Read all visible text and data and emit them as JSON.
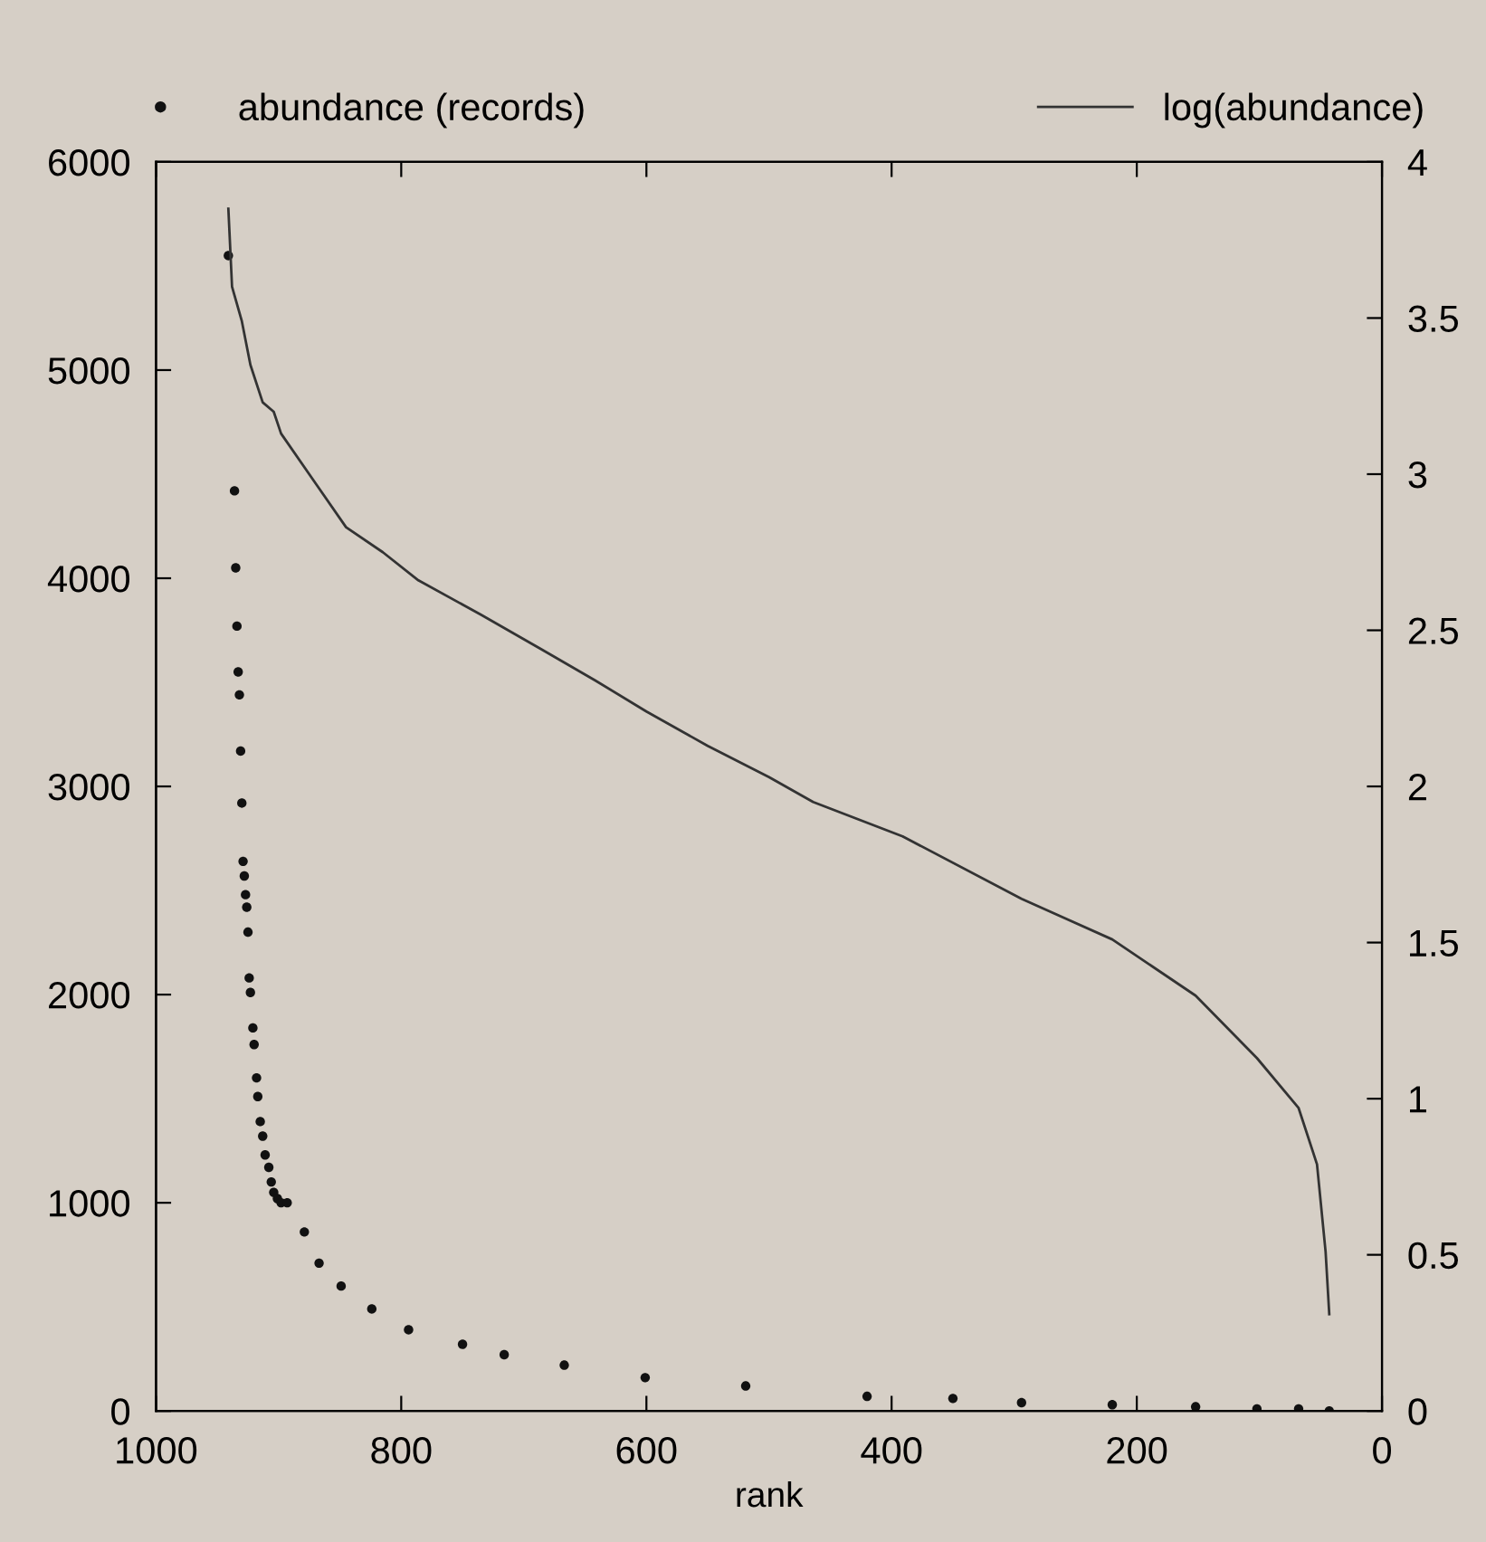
{
  "chart_data": {
    "type": "scatter",
    "xlabel": "rank",
    "legend": "top",
    "xlim": [
      1000,
      0
    ],
    "xticks": [
      1000,
      800,
      600,
      400,
      200,
      0
    ],
    "ylim": [
      0,
      6000
    ],
    "yticks": [
      0,
      1000,
      2000,
      3000,
      4000,
      5000,
      6000
    ],
    "y2lim": [
      0,
      4
    ],
    "y2ticks": [
      0,
      0.5,
      1,
      1.5,
      2,
      2.5,
      3,
      3.5,
      4
    ],
    "grid": false,
    "series": [
      {
        "name": "abundance (records)",
        "marker": "circle",
        "color": "#111111",
        "x": [
          941,
          936,
          935,
          934,
          933,
          932,
          931,
          930,
          929,
          928,
          927,
          926,
          925,
          924,
          923,
          921,
          920,
          918,
          917,
          915,
          913,
          911,
          908,
          906,
          904,
          901,
          898,
          893,
          879,
          867,
          849,
          824,
          794,
          750,
          716,
          667,
          601,
          519,
          420,
          350,
          294,
          220,
          152,
          102,
          68,
          43
        ],
        "values": [
          5550,
          4420,
          4050,
          3770,
          3550,
          3440,
          3170,
          2920,
          2640,
          2570,
          2480,
          2420,
          2300,
          2080,
          2010,
          1840,
          1760,
          1600,
          1510,
          1390,
          1320,
          1230,
          1170,
          1100,
          1050,
          1020,
          1000,
          1000,
          860,
          710,
          600,
          490,
          390,
          320,
          270,
          220,
          160,
          120,
          70,
          60,
          40,
          30,
          20,
          10,
          10,
          0
        ]
      },
      {
        "name": "log(abundance)",
        "type": "line",
        "axis": "y2",
        "line_style": "solid",
        "marker": "none",
        "color": "#333333",
        "x": [
          941,
          938,
          930,
          923,
          913,
          904,
          898,
          868,
          845,
          815,
          786,
          735,
          686,
          642,
          600,
          550,
          500,
          464,
          391,
          294,
          220,
          152,
          102,
          68,
          53,
          46,
          43
        ],
        "values": [
          3.85,
          3.6,
          3.49,
          3.35,
          3.23,
          3.2,
          3.13,
          2.96,
          2.83,
          2.75,
          2.66,
          2.55,
          2.44,
          2.34,
          2.24,
          2.13,
          2.03,
          1.95,
          1.84,
          1.64,
          1.51,
          1.33,
          1.13,
          0.97,
          0.79,
          0.51,
          0.31
        ]
      }
    ]
  }
}
